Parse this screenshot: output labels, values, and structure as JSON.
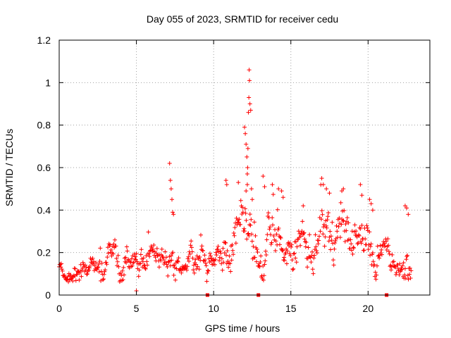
{
  "chart_data": {
    "type": "scatter",
    "title": "Day 055 of 2023, SRMTID for receiver cedu",
    "xlabel": "GPS time / hours",
    "ylabel": "SRMTID / TECUs",
    "xlim": [
      0,
      24
    ],
    "ylim": [
      0,
      1.2
    ],
    "xticks": [
      {
        "value": 0,
        "label": "0"
      },
      {
        "value": 5,
        "label": "5"
      },
      {
        "value": 10,
        "label": "10"
      },
      {
        "value": 15,
        "label": "15"
      },
      {
        "value": 20,
        "label": "20"
      }
    ],
    "yticks": [
      {
        "value": 0,
        "label": "0"
      },
      {
        "value": 0.2,
        "label": "0.2"
      },
      {
        "value": 0.4,
        "label": "0.4"
      },
      {
        "value": 0.6,
        "label": "0.6"
      },
      {
        "value": 0.8,
        "label": "0.8"
      },
      {
        "value": 1.0,
        "label": "1"
      },
      {
        "value": 1.2,
        "label": "1.2"
      }
    ],
    "grid": true,
    "marker": "+",
    "color": "#ff0000",
    "series": [
      {
        "name": "SRMTID",
        "profile": [
          {
            "x": 0.0,
            "base": 0.12,
            "spread": 0.04
          },
          {
            "x": 1.0,
            "base": 0.11,
            "spread": 0.05
          },
          {
            "x": 2.0,
            "base": 0.13,
            "spread": 0.06
          },
          {
            "x": 3.0,
            "base": 0.14,
            "spread": 0.08
          },
          {
            "x": 4.0,
            "base": 0.17,
            "spread": 0.09
          },
          {
            "x": 5.0,
            "base": 0.17,
            "spread": 0.08
          },
          {
            "x": 6.0,
            "base": 0.14,
            "spread": 0.07
          },
          {
            "x": 7.0,
            "base": 0.17,
            "spread": 0.08
          },
          {
            "x": 8.0,
            "base": 0.16,
            "spread": 0.08
          },
          {
            "x": 9.0,
            "base": 0.14,
            "spread": 0.07
          },
          {
            "x": 10.0,
            "base": 0.15,
            "spread": 0.08
          },
          {
            "x": 11.0,
            "base": 0.22,
            "spread": 0.12
          },
          {
            "x": 12.0,
            "base": 0.25,
            "spread": 0.15
          },
          {
            "x": 13.0,
            "base": 0.22,
            "spread": 0.14
          },
          {
            "x": 14.0,
            "base": 0.22,
            "spread": 0.12
          },
          {
            "x": 15.0,
            "base": 0.22,
            "spread": 0.11
          },
          {
            "x": 16.0,
            "base": 0.2,
            "spread": 0.1
          },
          {
            "x": 17.0,
            "base": 0.25,
            "spread": 0.13
          },
          {
            "x": 18.0,
            "base": 0.22,
            "spread": 0.11
          },
          {
            "x": 19.0,
            "base": 0.25,
            "spread": 0.11
          },
          {
            "x": 20.0,
            "base": 0.25,
            "spread": 0.12
          },
          {
            "x": 21.0,
            "base": 0.18,
            "spread": 0.09
          },
          {
            "x": 22.0,
            "base": 0.14,
            "spread": 0.07
          },
          {
            "x": 22.8,
            "base": 0.18,
            "spread": 0.1
          }
        ],
        "sample_step_hours": 0.035,
        "x_end": 22.8,
        "outliers": [
          {
            "x": 7.15,
            "y": 0.62
          },
          {
            "x": 7.2,
            "y": 0.54
          },
          {
            "x": 7.25,
            "y": 0.5
          },
          {
            "x": 7.3,
            "y": 0.45
          },
          {
            "x": 7.35,
            "y": 0.39
          },
          {
            "x": 7.4,
            "y": 0.38
          },
          {
            "x": 10.8,
            "y": 0.54
          },
          {
            "x": 10.85,
            "y": 0.52
          },
          {
            "x": 11.6,
            "y": 0.53
          },
          {
            "x": 12.0,
            "y": 0.79
          },
          {
            "x": 12.05,
            "y": 0.76
          },
          {
            "x": 12.1,
            "y": 0.71
          },
          {
            "x": 12.15,
            "y": 0.65
          },
          {
            "x": 12.2,
            "y": 0.6
          },
          {
            "x": 12.25,
            "y": 0.86
          },
          {
            "x": 12.3,
            "y": 1.06
          },
          {
            "x": 12.32,
            "y": 1.01
          },
          {
            "x": 12.28,
            "y": 0.93
          },
          {
            "x": 12.35,
            "y": 0.9
          },
          {
            "x": 12.4,
            "y": 0.87
          },
          {
            "x": 12.22,
            "y": 0.69
          },
          {
            "x": 12.18,
            "y": 0.57
          },
          {
            "x": 12.45,
            "y": 0.5
          },
          {
            "x": 12.1,
            "y": 0.49
          },
          {
            "x": 12.5,
            "y": 0.45
          },
          {
            "x": 13.2,
            "y": 0.56
          },
          {
            "x": 13.3,
            "y": 0.51
          },
          {
            "x": 13.8,
            "y": 0.52
          },
          {
            "x": 14.2,
            "y": 0.5
          },
          {
            "x": 14.4,
            "y": 0.49
          },
          {
            "x": 14.5,
            "y": 0.46
          },
          {
            "x": 15.8,
            "y": 0.42
          },
          {
            "x": 17.0,
            "y": 0.55
          },
          {
            "x": 17.1,
            "y": 0.52
          },
          {
            "x": 17.3,
            "y": 0.5
          },
          {
            "x": 17.5,
            "y": 0.48
          },
          {
            "x": 18.3,
            "y": 0.49
          },
          {
            "x": 18.4,
            "y": 0.5
          },
          {
            "x": 19.5,
            "y": 0.52
          },
          {
            "x": 19.6,
            "y": 0.47
          },
          {
            "x": 20.1,
            "y": 0.45
          },
          {
            "x": 20.2,
            "y": 0.43
          },
          {
            "x": 20.3,
            "y": 0.4
          },
          {
            "x": 22.4,
            "y": 0.42
          },
          {
            "x": 22.5,
            "y": 0.41
          },
          {
            "x": 22.6,
            "y": 0.38
          },
          {
            "x": 5.0,
            "y": 0.02
          }
        ]
      }
    ],
    "gap_markers": [
      {
        "x": 9.6,
        "y": 0.0
      },
      {
        "x": 12.9,
        "y": 0.0
      },
      {
        "x": 21.2,
        "y": 0.0
      }
    ]
  }
}
